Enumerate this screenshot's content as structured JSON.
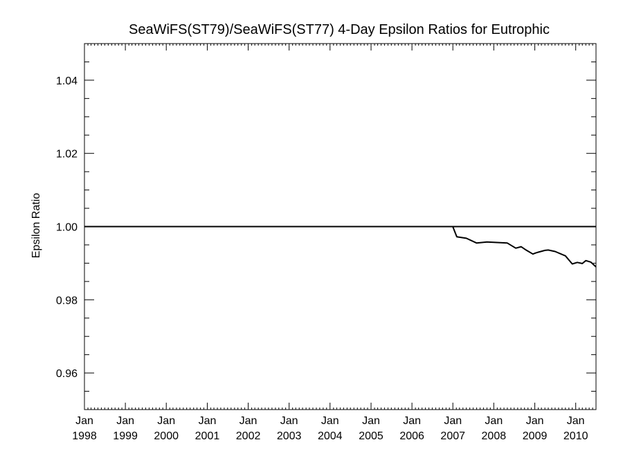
{
  "chart_data": {
    "type": "line",
    "title": "SeaWiFS(ST79)/SeaWiFS(ST77) 4-Day Epsilon Ratios for Eutrophic",
    "xlabel": "",
    "ylabel": "Epsilon Ratio",
    "ylim": [
      0.95,
      1.05
    ],
    "yticks": [
      0.96,
      0.98,
      1.0,
      1.02,
      1.04
    ],
    "ytick_labels": [
      "0.96",
      "0.98",
      "1.00",
      "1.02",
      "1.04"
    ],
    "xlim": [
      "1998-01-01",
      "2010-07-01"
    ],
    "xticks": [
      "1998-01-01",
      "1999-01-01",
      "2000-01-01",
      "2001-01-01",
      "2002-01-01",
      "2003-01-01",
      "2004-01-01",
      "2005-01-01",
      "2006-01-01",
      "2007-01-01",
      "2008-01-01",
      "2009-01-01",
      "2010-01-01"
    ],
    "xtick_labels": [
      {
        "month": "Jan",
        "year": "1998"
      },
      {
        "month": "Jan",
        "year": "1999"
      },
      {
        "month": "Jan",
        "year": "2000"
      },
      {
        "month": "Jan",
        "year": "2001"
      },
      {
        "month": "Jan",
        "year": "2002"
      },
      {
        "month": "Jan",
        "year": "2003"
      },
      {
        "month": "Jan",
        "year": "2004"
      },
      {
        "month": "Jan",
        "year": "2005"
      },
      {
        "month": "Jan",
        "year": "2006"
      },
      {
        "month": "Jan",
        "year": "2007"
      },
      {
        "month": "Jan",
        "year": "2008"
      },
      {
        "month": "Jan",
        "year": "2009"
      },
      {
        "month": "Jan",
        "year": "2010"
      }
    ],
    "grid": false,
    "reference_line": 1.0,
    "series": [
      {
        "x": [
          "1998-01-01",
          "2006-12-31",
          "2007-02-05",
          "2007-05-01",
          "2007-08-01",
          "2007-11-01",
          "2008-03-01",
          "2008-05-01",
          "2008-07-15",
          "2008-09-01",
          "2008-10-15",
          "2008-12-15",
          "2009-01-10",
          "2009-02-01",
          "2009-04-01",
          "2009-05-01",
          "2009-07-01",
          "2009-10-01",
          "2009-12-01",
          "2010-01-15",
          "2010-03-01",
          "2010-04-01",
          "2010-05-15",
          "2010-07-01"
        ],
        "y": [
          1.0,
          1.0,
          0.9972,
          0.9968,
          0.9955,
          0.9958,
          0.9956,
          0.9955,
          0.9941,
          0.9945,
          0.9936,
          0.9925,
          0.9928,
          0.993,
          0.9935,
          0.9936,
          0.9932,
          0.992,
          0.9898,
          0.9902,
          0.9899,
          0.9907,
          0.9903,
          0.989
        ]
      }
    ]
  }
}
